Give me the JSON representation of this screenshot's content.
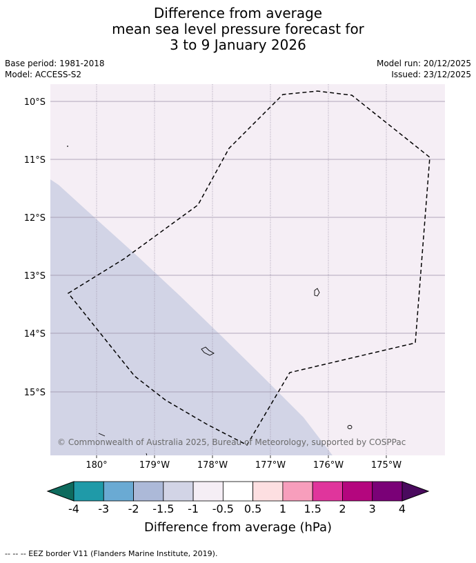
{
  "title": {
    "line1": "Difference from average",
    "line2": "mean sea level pressure forecast for",
    "line3": "3 to 9 January 2026"
  },
  "meta": {
    "base_period": "Base period: 1981-2018",
    "model": "Model: ACCESS-S2",
    "model_run": "Model run: 20/12/2025",
    "issued": "Issued: 23/12/2025"
  },
  "map": {
    "longitude_ticks": [
      "180°",
      "179°W",
      "178°W",
      "177°W",
      "176°W",
      "175°W"
    ],
    "latitude_ticks": [
      "10°S",
      "11°S",
      "12°S",
      "13°S",
      "14°S",
      "15°S"
    ],
    "attribution": "© Commonwealth of Australia 2025, Bureau of Meteorology, supported by COSPPac",
    "field_colors": {
      "minus_1_5_to_minus_1": "#d2d4e6",
      "minus_1_to_minus_0_5": "#f5eef5"
    },
    "gridline_color": "#9a8fa6"
  },
  "colorbar": {
    "labels": [
      "-4",
      "-3",
      "-2",
      "-1.5",
      "-1",
      "-0.5",
      "0.5",
      "1",
      "1.5",
      "2",
      "3",
      "4"
    ],
    "colors": [
      "#0e6b5e",
      "#1f9aa8",
      "#6aaad3",
      "#acb9d8",
      "#d2d4e6",
      "#f5eef5",
      "#ffffff",
      "#fddfe1",
      "#f79ebc",
      "#e0359c",
      "#b4067e",
      "#7a0177",
      "#4a0a5e"
    ],
    "label": "Difference from average (hPa)"
  },
  "footer": {
    "legend": "-- -- -- EEZ border V11 (Flanders Marine Institute, 2019)."
  }
}
